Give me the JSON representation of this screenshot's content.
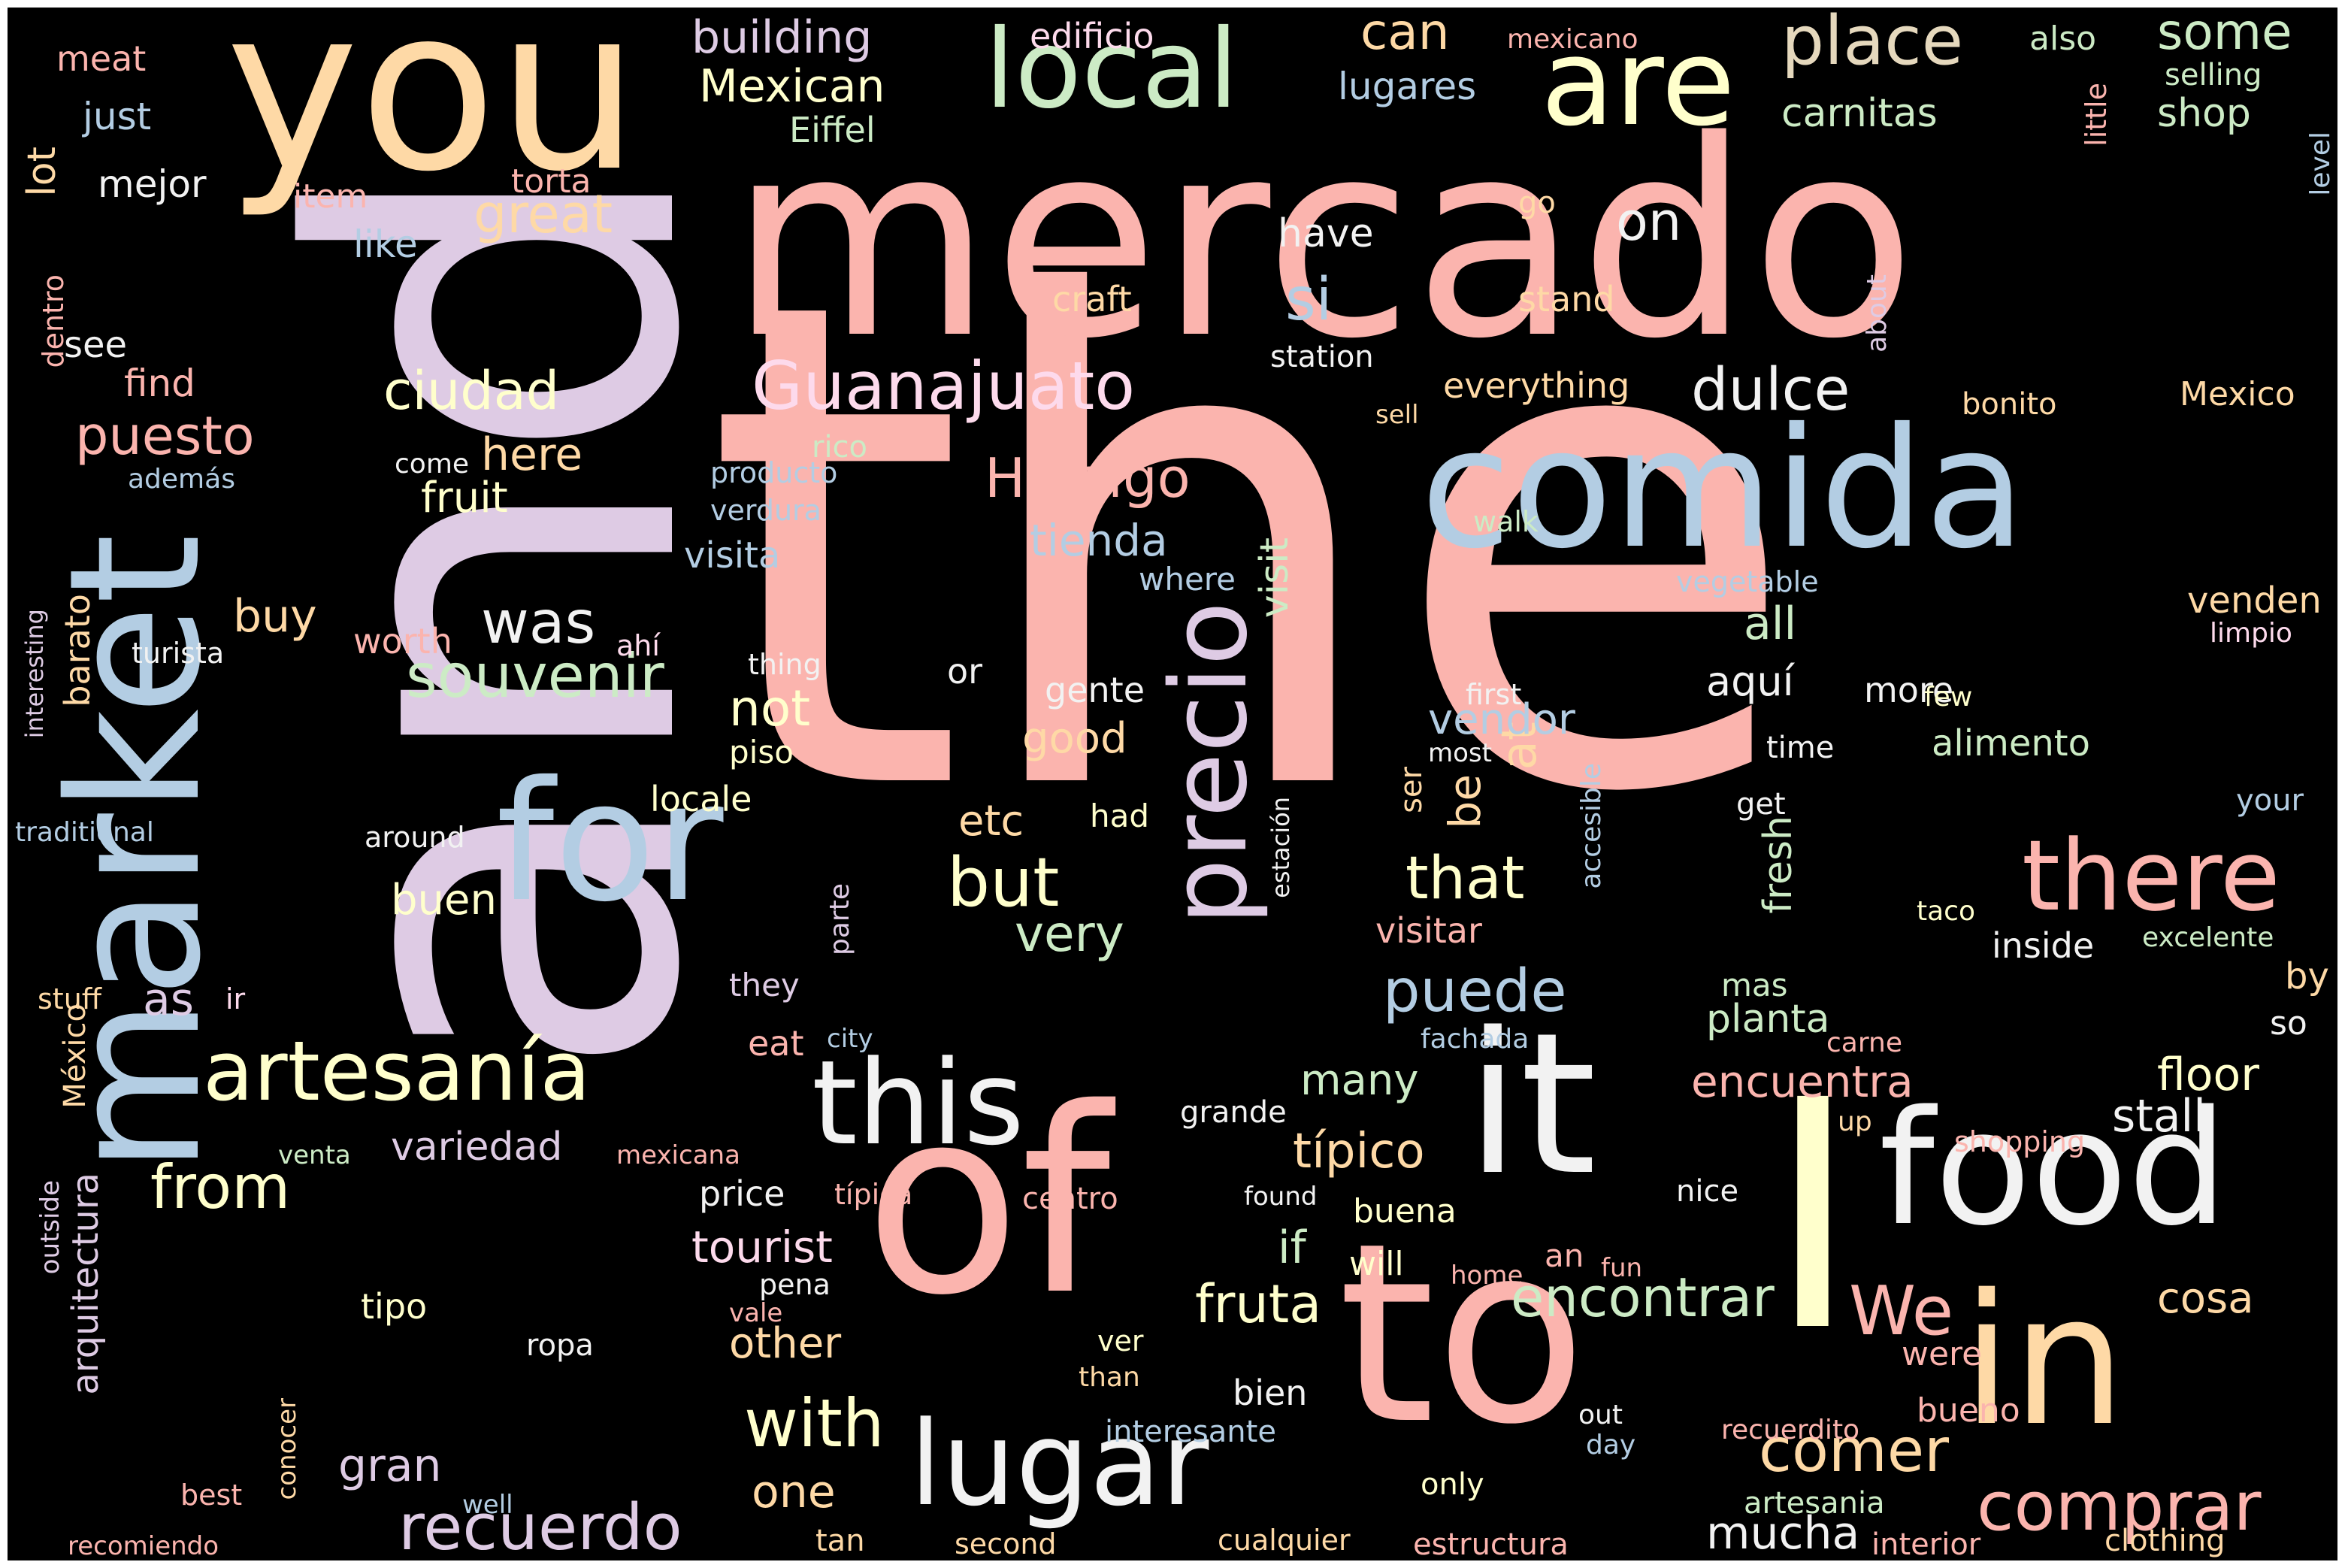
{
  "palette": {
    "background": "#000000",
    "salmon": "#fbb4ae",
    "blue": "#b3cde3",
    "green": "#ccebc5",
    "lavender": "#decbe4",
    "orange": "#fed9a6",
    "yellow": "#ffffcc",
    "tan": "#e5d8bd",
    "pink": "#fddaec",
    "white": "#f2f2f2"
  },
  "words": [
    {
      "text": "the",
      "color": "#fbb4ae",
      "orientation": "horizontal"
    },
    {
      "text": "and",
      "color": "#decbe4",
      "orientation": "vertical"
    },
    {
      "text": "mercado",
      "color": "#fbb4ae",
      "orientation": "horizontal"
    },
    {
      "text": "you",
      "color": "#fed9a6",
      "orientation": "horizontal"
    },
    {
      "text": "market",
      "color": "#b3cde3",
      "orientation": "vertical"
    },
    {
      "text": "comida",
      "color": "#b3cde3",
      "orientation": "horizontal"
    },
    {
      "text": "of",
      "color": "#fbb4ae",
      "orientation": "horizontal"
    },
    {
      "text": "to",
      "color": "#fbb4ae",
      "orientation": "horizontal"
    },
    {
      "text": "it",
      "color": "#f2f2f2",
      "orientation": "horizontal"
    },
    {
      "text": "food",
      "color": "#f2f2f2",
      "orientation": "horizontal"
    },
    {
      "text": "in",
      "color": "#fed9a6",
      "orientation": "horizontal"
    },
    {
      "text": "I",
      "color": "#ffffcc",
      "orientation": "horizontal"
    },
    {
      "text": "for",
      "color": "#b3cde3",
      "orientation": "horizontal"
    },
    {
      "text": "local",
      "color": "#ccebc5",
      "orientation": "horizontal"
    },
    {
      "text": "are",
      "color": "#ffffcc",
      "orientation": "horizontal"
    },
    {
      "text": "this",
      "color": "#f2f2f2",
      "orientation": "horizontal"
    },
    {
      "text": "lugar",
      "color": "#f2f2f2",
      "orientation": "horizontal"
    },
    {
      "text": "there",
      "color": "#fbb4ae",
      "orientation": "horizontal"
    },
    {
      "text": "precio",
      "color": "#decbe4",
      "orientation": "vertical"
    },
    {
      "text": "artesanía",
      "color": "#ffffcc",
      "orientation": "horizontal"
    },
    {
      "text": "place",
      "color": "#e5d8bd",
      "orientation": "horizontal"
    },
    {
      "text": "Guanajuato",
      "color": "#fddaec",
      "orientation": "horizontal"
    },
    {
      "text": "comprar",
      "color": "#fbb4ae",
      "orientation": "horizontal"
    },
    {
      "text": "recuerdo",
      "color": "#decbe4",
      "orientation": "horizontal"
    },
    {
      "text": "We",
      "color": "#fbb4ae",
      "orientation": "horizontal"
    },
    {
      "text": "souvenir",
      "color": "#ccebc5",
      "orientation": "horizontal"
    },
    {
      "text": "but",
      "color": "#ffffcc",
      "orientation": "horizontal"
    },
    {
      "text": "with",
      "color": "#ffffcc",
      "orientation": "horizontal"
    },
    {
      "text": "comer",
      "color": "#fed9a6",
      "orientation": "horizontal"
    },
    {
      "text": "from",
      "color": "#ffffcc",
      "orientation": "horizontal"
    },
    {
      "text": "puede",
      "color": "#b3cde3",
      "orientation": "horizontal"
    },
    {
      "text": "that",
      "color": "#ffffcc",
      "orientation": "horizontal"
    },
    {
      "text": "dulce",
      "color": "#f2f2f2",
      "orientation": "horizontal"
    },
    {
      "text": "Hidalgo",
      "color": "#fbb4ae",
      "orientation": "horizontal"
    },
    {
      "text": "encontrar",
      "color": "#ccebc5",
      "orientation": "horizontal"
    },
    {
      "text": "mucha",
      "color": "#f2f2f2",
      "orientation": "horizontal"
    },
    {
      "text": "was",
      "color": "#f2f2f2",
      "orientation": "horizontal"
    },
    {
      "text": "puesto",
      "color": "#fbb4ae",
      "orientation": "horizontal"
    },
    {
      "text": "ciudad",
      "color": "#ffffcc",
      "orientation": "horizontal"
    },
    {
      "text": "great",
      "color": "#fed9a6",
      "orientation": "horizontal"
    },
    {
      "text": "some",
      "color": "#ccebc5",
      "orientation": "horizontal"
    },
    {
      "text": "si",
      "color": "#b3cde3",
      "orientation": "horizontal"
    },
    {
      "text": "on",
      "color": "#f2f2f2",
      "orientation": "horizontal"
    },
    {
      "text": "can",
      "color": "#fed9a6",
      "orientation": "horizontal"
    },
    {
      "text": "Mexican",
      "color": "#ffffcc",
      "orientation": "horizontal"
    },
    {
      "text": "building",
      "color": "#decbe4",
      "orientation": "horizontal"
    },
    {
      "text": "fruta",
      "color": "#ffffcc",
      "orientation": "horizontal"
    },
    {
      "text": "típico",
      "color": "#fed9a6",
      "orientation": "horizontal"
    },
    {
      "text": "variedad",
      "color": "#decbe4",
      "orientation": "horizontal"
    },
    {
      "text": "encuentra",
      "color": "#fbb4ae",
      "orientation": "horizontal"
    },
    {
      "text": "floor",
      "color": "#ffffcc",
      "orientation": "horizontal"
    },
    {
      "text": "stall",
      "color": "#f2f2f2",
      "orientation": "horizontal"
    },
    {
      "text": "tienda",
      "color": "#b3cde3",
      "orientation": "horizontal"
    },
    {
      "text": "gran",
      "color": "#decbe4",
      "orientation": "horizontal"
    },
    {
      "text": "one",
      "color": "#fed9a6",
      "orientation": "horizontal"
    },
    {
      "text": "tourist",
      "color": "#fddaec",
      "orientation": "horizontal"
    },
    {
      "text": "very",
      "color": "#ccebc5",
      "orientation": "horizontal"
    },
    {
      "text": "many",
      "color": "#ccebc5",
      "orientation": "horizontal"
    },
    {
      "text": "not",
      "color": "#ffffcc",
      "orientation": "horizontal"
    },
    {
      "text": "all",
      "color": "#ccebc5",
      "orientation": "horizontal"
    },
    {
      "text": "here",
      "color": "#fed9a6",
      "orientation": "horizontal"
    },
    {
      "text": "fruit",
      "color": "#ffffcc",
      "orientation": "horizontal"
    },
    {
      "text": "good",
      "color": "#fed9a6",
      "orientation": "horizontal"
    },
    {
      "text": "buen",
      "color": "#ffffcc",
      "orientation": "horizontal"
    },
    {
      "text": "as",
      "color": "#decbe4",
      "orientation": "horizontal"
    },
    {
      "text": "buy",
      "color": "#fed9a6",
      "orientation": "horizontal"
    },
    {
      "text": "other",
      "color": "#fed9a6",
      "orientation": "horizontal"
    },
    {
      "text": "if",
      "color": "#ccebc5",
      "orientation": "horizontal"
    },
    {
      "text": "etc",
      "color": "#fed9a6",
      "orientation": "horizontal"
    },
    {
      "text": "be",
      "color": "#fed9a6",
      "orientation": "vertical"
    },
    {
      "text": "at",
      "color": "#fed9a6",
      "orientation": "vertical"
    },
    {
      "text": "carnitas",
      "color": "#ccebc5",
      "orientation": "horizontal"
    },
    {
      "text": "shop",
      "color": "#ccebc5",
      "orientation": "horizontal"
    },
    {
      "text": "lugares",
      "color": "#b3cde3",
      "orientation": "horizontal"
    },
    {
      "text": "cosa",
      "color": "#fed9a6",
      "orientation": "horizontal"
    },
    {
      "text": "alimento",
      "color": "#ccebc5",
      "orientation": "horizontal"
    },
    {
      "text": "venden",
      "color": "#fed9a6",
      "orientation": "horizontal"
    },
    {
      "text": "planta",
      "color": "#ccebc5",
      "orientation": "horizontal"
    },
    {
      "text": "aquí",
      "color": "#f2f2f2",
      "orientation": "horizontal"
    },
    {
      "text": "vendor",
      "color": "#b3cde3",
      "orientation": "horizontal"
    },
    {
      "text": "have",
      "color": "#f2f2f2",
      "orientation": "horizontal"
    },
    {
      "text": "like",
      "color": "#b3cde3",
      "orientation": "horizontal"
    },
    {
      "text": "lot",
      "color": "#fed9a6",
      "orientation": "vertical"
    },
    {
      "text": "barato",
      "color": "#fed9a6",
      "orientation": "vertical"
    },
    {
      "text": "visit",
      "color": "#ccebc5",
      "orientation": "vertical"
    },
    {
      "text": "fresh",
      "color": "#ccebc5",
      "orientation": "vertical"
    },
    {
      "text": "arquitectura",
      "color": "#decbe4",
      "orientation": "vertical"
    },
    {
      "text": "México",
      "color": "#fed9a6",
      "orientation": "vertical"
    },
    {
      "text": "edificio",
      "color": "#fddaec",
      "orientation": "horizontal"
    },
    {
      "text": "Eiffel",
      "color": "#ccebc5",
      "orientation": "horizontal"
    },
    {
      "text": "just",
      "color": "#b3cde3",
      "orientation": "horizontal"
    },
    {
      "text": "mejor",
      "color": "#f2f2f2",
      "orientation": "horizontal"
    },
    {
      "text": "item",
      "color": "#fbb4ae",
      "orientation": "horizontal"
    },
    {
      "text": "torta",
      "color": "#fbb4ae",
      "orientation": "horizontal"
    },
    {
      "text": "meat",
      "color": "#fbb4ae",
      "orientation": "horizontal"
    },
    {
      "text": "mexicano",
      "color": "#fbb4ae",
      "orientation": "horizontal"
    },
    {
      "text": "also",
      "color": "#ccebc5",
      "orientation": "horizontal"
    },
    {
      "text": "selling",
      "color": "#ccebc5",
      "orientation": "horizontal"
    },
    {
      "text": "little",
      "color": "#fbb4ae",
      "orientation": "vertical"
    },
    {
      "text": "level",
      "color": "#b3cde3",
      "orientation": "vertical"
    },
    {
      "text": "go",
      "color": "#fed9a6",
      "orientation": "horizontal"
    },
    {
      "text": "craft",
      "color": "#fed9a6",
      "orientation": "horizontal"
    },
    {
      "text": "stand",
      "color": "#fed9a6",
      "orientation": "horizontal"
    },
    {
      "text": "station",
      "color": "#f2f2f2",
      "orientation": "horizontal"
    },
    {
      "text": "about",
      "color": "#decbe4",
      "orientation": "vertical"
    },
    {
      "text": "everything",
      "color": "#fed9a6",
      "orientation": "horizontal"
    },
    {
      "text": "sell",
      "color": "#fed9a6",
      "orientation": "horizontal"
    },
    {
      "text": "bonito",
      "color": "#fed9a6",
      "orientation": "horizontal"
    },
    {
      "text": "Mexico",
      "color": "#fed9a6",
      "orientation": "horizontal"
    },
    {
      "text": "find",
      "color": "#fbb4ae",
      "orientation": "horizontal"
    },
    {
      "text": "see",
      "color": "#f2f2f2",
      "orientation": "horizontal"
    },
    {
      "text": "dentro",
      "color": "#fbb4ae",
      "orientation": "vertical"
    },
    {
      "text": "come",
      "color": "#f2f2f2",
      "orientation": "horizontal"
    },
    {
      "text": "además",
      "color": "#b3cde3",
      "orientation": "horizontal"
    },
    {
      "text": "rico",
      "color": "#ccebc5",
      "orientation": "horizontal"
    },
    {
      "text": "producto",
      "color": "#b3cde3",
      "orientation": "horizontal"
    },
    {
      "text": "verdura",
      "color": "#b3cde3",
      "orientation": "horizontal"
    },
    {
      "text": "visita",
      "color": "#b3cde3",
      "orientation": "horizontal"
    },
    {
      "text": "where",
      "color": "#b3cde3",
      "orientation": "horizontal"
    },
    {
      "text": "walk",
      "color": "#ccebc5",
      "orientation": "horizontal"
    },
    {
      "text": "vegetable",
      "color": "#b3cde3",
      "orientation": "horizontal"
    },
    {
      "text": "limpio",
      "color": "#fddaec",
      "orientation": "horizontal"
    },
    {
      "text": "worth",
      "color": "#fbb4ae",
      "orientation": "horizontal"
    },
    {
      "text": "ahí",
      "color": "#fddaec",
      "orientation": "horizontal"
    },
    {
      "text": "turista",
      "color": "#f2f2f2",
      "orientation": "horizontal"
    },
    {
      "text": "thing",
      "color": "#f2f2f2",
      "orientation": "horizontal"
    },
    {
      "text": "interesting",
      "color": "#decbe4",
      "orientation": "vertical"
    },
    {
      "text": "or",
      "color": "#f2f2f2",
      "orientation": "horizontal"
    },
    {
      "text": "gente",
      "color": "#f2f2f2",
      "orientation": "horizontal"
    },
    {
      "text": "first",
      "color": "#f2f2f2",
      "orientation": "horizontal"
    },
    {
      "text": "more",
      "color": "#f2f2f2",
      "orientation": "horizontal"
    },
    {
      "text": "few",
      "color": "#ffffcc",
      "orientation": "horizontal"
    },
    {
      "text": "time",
      "color": "#f2f2f2",
      "orientation": "horizontal"
    },
    {
      "text": "most",
      "color": "#f2f2f2",
      "orientation": "horizontal"
    },
    {
      "text": "piso",
      "color": "#ffffcc",
      "orientation": "horizontal"
    },
    {
      "text": "locale",
      "color": "#ffffcc",
      "orientation": "horizontal"
    },
    {
      "text": "had",
      "color": "#ffffcc",
      "orientation": "horizontal"
    },
    {
      "text": "ser",
      "color": "#fed9a6",
      "orientation": "vertical"
    },
    {
      "text": "accesible",
      "color": "#b3cde3",
      "orientation": "vertical"
    },
    {
      "text": "get",
      "color": "#f2f2f2",
      "orientation": "horizontal"
    },
    {
      "text": "your",
      "color": "#b3cde3",
      "orientation": "horizontal"
    },
    {
      "text": "traditional",
      "color": "#b3cde3",
      "orientation": "horizontal"
    },
    {
      "text": "around",
      "color": "#f2f2f2",
      "orientation": "horizontal"
    },
    {
      "text": "estación",
      "color": "#f2f2f2",
      "orientation": "vertical"
    },
    {
      "text": "parte",
      "color": "#decbe4",
      "orientation": "vertical"
    },
    {
      "text": "visitar",
      "color": "#fbb4ae",
      "orientation": "horizontal"
    },
    {
      "text": "taco",
      "color": "#ffffcc",
      "orientation": "horizontal"
    },
    {
      "text": "excelente",
      "color": "#ccebc5",
      "orientation": "horizontal"
    },
    {
      "text": "inside",
      "color": "#f2f2f2",
      "orientation": "horizontal"
    },
    {
      "text": "by",
      "color": "#fed9a6",
      "orientation": "horizontal"
    },
    {
      "text": "so",
      "color": "#f2f2f2",
      "orientation": "horizontal"
    },
    {
      "text": "stuff",
      "color": "#fed9a6",
      "orientation": "horizontal"
    },
    {
      "text": "ir",
      "color": "#fddaec",
      "orientation": "horizontal"
    },
    {
      "text": "they",
      "color": "#decbe4",
      "orientation": "horizontal"
    },
    {
      "text": "mas",
      "color": "#ccebc5",
      "orientation": "horizontal"
    },
    {
      "text": "eat",
      "color": "#fbb4ae",
      "orientation": "horizontal"
    },
    {
      "text": "city",
      "color": "#b3cde3",
      "orientation": "horizontal"
    },
    {
      "text": "fachada",
      "color": "#b3cde3",
      "orientation": "horizontal"
    },
    {
      "text": "carne",
      "color": "#fbb4ae",
      "orientation": "horizontal"
    },
    {
      "text": "grande",
      "color": "#f2f2f2",
      "orientation": "horizontal"
    },
    {
      "text": "up",
      "color": "#fed9a6",
      "orientation": "horizontal"
    },
    {
      "text": "shopping",
      "color": "#fbb4ae",
      "orientation": "horizontal"
    },
    {
      "text": "venta",
      "color": "#ccebc5",
      "orientation": "horizontal"
    },
    {
      "text": "mexicana",
      "color": "#fbb4ae",
      "orientation": "horizontal"
    },
    {
      "text": "price",
      "color": "#f2f2f2",
      "orientation": "horizontal"
    },
    {
      "text": "típica",
      "color": "#fbb4ae",
      "orientation": "horizontal"
    },
    {
      "text": "centro",
      "color": "#fbb4ae",
      "orientation": "horizontal"
    },
    {
      "text": "found",
      "color": "#f2f2f2",
      "orientation": "horizontal"
    },
    {
      "text": "buena",
      "color": "#ffffcc",
      "orientation": "horizontal"
    },
    {
      "text": "nice",
      "color": "#f2f2f2",
      "orientation": "horizontal"
    },
    {
      "text": "outside",
      "color": "#decbe4",
      "orientation": "vertical"
    },
    {
      "text": "will",
      "color": "#ffffcc",
      "orientation": "horizontal"
    },
    {
      "text": "an",
      "color": "#fbb4ae",
      "orientation": "horizontal"
    },
    {
      "text": "fun",
      "color": "#fbb4ae",
      "orientation": "horizontal"
    },
    {
      "text": "home",
      "color": "#fbb4ae",
      "orientation": "horizontal"
    },
    {
      "text": "pena",
      "color": "#f2f2f2",
      "orientation": "horizontal"
    },
    {
      "text": "vale",
      "color": "#fbb4ae",
      "orientation": "horizontal"
    },
    {
      "text": "tipo",
      "color": "#ffffcc",
      "orientation": "horizontal"
    },
    {
      "text": "ropa",
      "color": "#f2f2f2",
      "orientation": "horizontal"
    },
    {
      "text": "ver",
      "color": "#ffffcc",
      "orientation": "horizontal"
    },
    {
      "text": "than",
      "color": "#fed9a6",
      "orientation": "horizontal"
    },
    {
      "text": "were",
      "color": "#fbb4ae",
      "orientation": "horizontal"
    },
    {
      "text": "bueno",
      "color": "#fbb4ae",
      "orientation": "horizontal"
    },
    {
      "text": "bien",
      "color": "#f2f2f2",
      "orientation": "horizontal"
    },
    {
      "text": "out",
      "color": "#f2f2f2",
      "orientation": "horizontal"
    },
    {
      "text": "day",
      "color": "#b3cde3",
      "orientation": "horizontal"
    },
    {
      "text": "recuerdito",
      "color": "#fbb4ae",
      "orientation": "horizontal"
    },
    {
      "text": "interesante",
      "color": "#b3cde3",
      "orientation": "horizontal"
    },
    {
      "text": "only",
      "color": "#ffffcc",
      "orientation": "horizontal"
    },
    {
      "text": "artesania",
      "color": "#ccebc5",
      "orientation": "horizontal"
    },
    {
      "text": "best",
      "color": "#fbb4ae",
      "orientation": "horizontal"
    },
    {
      "text": "well",
      "color": "#b3cde3",
      "orientation": "horizontal"
    },
    {
      "text": "conocer",
      "color": "#fed9a6",
      "orientation": "vertical"
    },
    {
      "text": "recomiendo",
      "color": "#fbb4ae",
      "orientation": "horizontal"
    },
    {
      "text": "tan",
      "color": "#fed9a6",
      "orientation": "horizontal"
    },
    {
      "text": "second",
      "color": "#fed9a6",
      "orientation": "horizontal"
    },
    {
      "text": "cualquier",
      "color": "#fed9a6",
      "orientation": "horizontal"
    },
    {
      "text": "estructura",
      "color": "#fbb4ae",
      "orientation": "horizontal"
    },
    {
      "text": "interior",
      "color": "#fbb4ae",
      "orientation": "horizontal"
    },
    {
      "text": "clothing",
      "color": "#fed9a6",
      "orientation": "horizontal"
    }
  ]
}
